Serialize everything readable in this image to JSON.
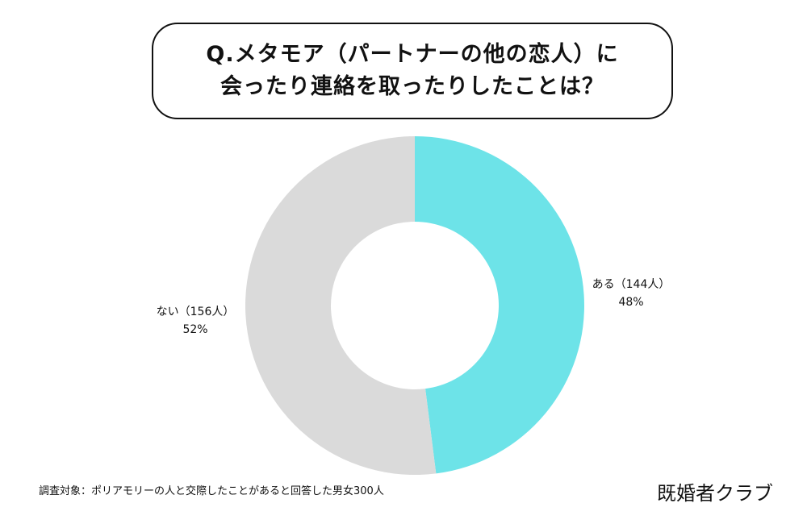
{
  "title": {
    "line1": "Q.メタモア（パートナーの他の恋人）に",
    "line2": "会ったり連絡を取ったりしたことは？"
  },
  "chart_data": {
    "type": "pie",
    "donut": true,
    "slices": [
      {
        "label": "ある",
        "count_text": "（144人）",
        "count": 144,
        "percent": 48,
        "percent_text": "48%",
        "color": "#6de3e8"
      },
      {
        "label": "ない",
        "count_text": "（156人）",
        "count": 156,
        "percent": 52,
        "percent_text": "52%",
        "color": "#dadada"
      }
    ]
  },
  "footnote": "調査対象：ポリアモリーの人と交際したことがあると回答した男女300人",
  "brand": "既婚者クラブ"
}
